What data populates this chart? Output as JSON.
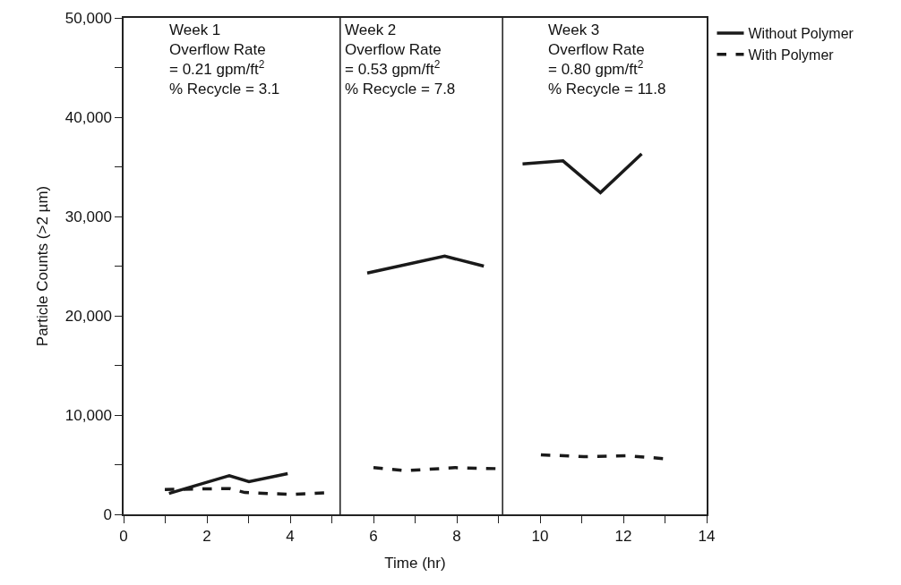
{
  "chart_data": {
    "type": "line",
    "xlabel": "Time (hr)",
    "ylabel": "Particle Counts (>2 µm)",
    "xlim": [
      0,
      14
    ],
    "xticks": [
      0,
      {
        "value": 1,
        "label": null
      },
      2,
      {
        "value": 3,
        "label": null
      },
      4,
      {
        "value": 5,
        "label": null
      },
      6,
      {
        "value": 7,
        "label": null
      },
      8,
      {
        "value": 9,
        "label": null
      },
      10,
      {
        "value": 11,
        "label": null
      },
      12,
      {
        "value": 13,
        "label": null
      },
      14
    ],
    "ylim": [
      0,
      50000
    ],
    "yticks": [
      {
        "value": 0,
        "label": "0"
      },
      {
        "value": 5000,
        "label": null
      },
      {
        "value": 10000,
        "label": "10,000"
      },
      {
        "value": 15000,
        "label": null
      },
      {
        "value": 20000,
        "label": "20,000"
      },
      {
        "value": 25000,
        "label": null
      },
      {
        "value": 30000,
        "label": "30,000"
      },
      {
        "value": 35000,
        "label": null
      },
      {
        "value": 40000,
        "label": "40,000"
      },
      {
        "value": 45000,
        "label": null
      },
      {
        "value": 50000,
        "label": "50,000"
      }
    ],
    "legend": "top right",
    "marker": "none",
    "series": [
      {
        "name": "Without Polymer",
        "color": "#1a1a1a",
        "line_style": "solid",
        "x": [
          1.09,
          2.54,
          3.01,
          3.94,
          5.2,
          5.85,
          7.71,
          8.65,
          9.1,
          9.58,
          10.55,
          11.45,
          12.44
        ],
        "values": [
          2100,
          3900,
          3300,
          4100,
          null,
          24300,
          26000,
          25000,
          null,
          35300,
          35600,
          32400,
          36300
        ]
      },
      {
        "name": "With Polymer",
        "color": "#1a1a1a",
        "line_style": "dashed",
        "x": [
          0.99,
          2.54,
          2.91,
          4.03,
          5.0,
          5.2,
          6.0,
          6.75,
          7.96,
          8.99,
          9.1,
          10.02,
          11.05,
          12.07,
          13.0
        ],
        "values": [
          2500,
          2600,
          2200,
          2000,
          2200,
          null,
          4700,
          4400,
          4700,
          4600,
          null,
          6000,
          5800,
          5900,
          5600
        ]
      }
    ],
    "ref_lines": [
      {
        "axis": "x",
        "value": 5.2,
        "color": "#1a1a1a"
      },
      {
        "axis": "x",
        "value": 9.1,
        "color": "#1a1a1a"
      }
    ],
    "annotations": [
      "Week 1\nOverflow Rate\n= 0.21 gpm/ft$^{2}$\n% Recycle = 3.1",
      "Week 2\nOverflow Rate\n= 0.53 gpm/ft$^{2}$\n% Recycle = 7.8",
      "Week 3\nOverflow Rate\n= 0.80 gpm/ft$^{2}$\n% Recycle = 11.8"
    ]
  }
}
